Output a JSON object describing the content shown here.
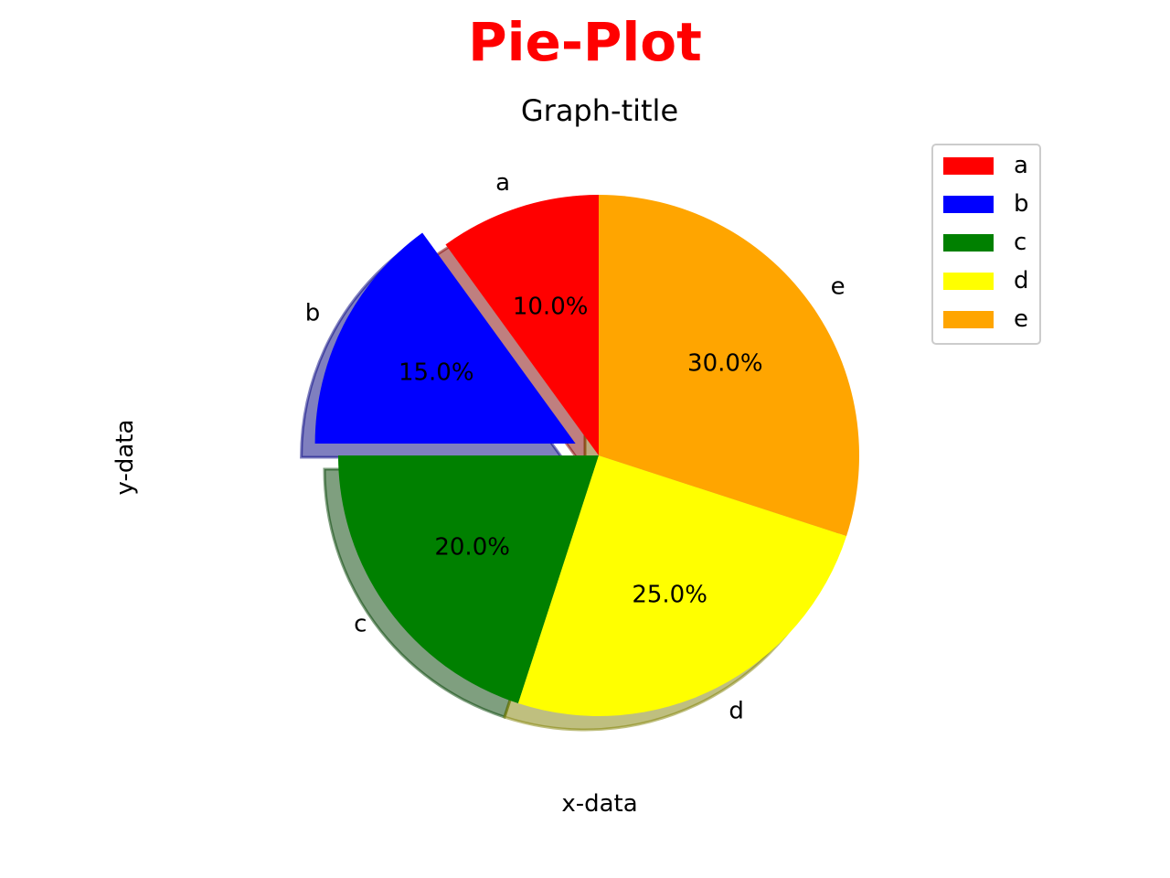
{
  "chart_data": {
    "type": "pie",
    "suptitle": "Pie-Plot",
    "suptitle_color": "#ff0000",
    "title": "Graph-title",
    "xlabel": "x-data",
    "ylabel": "y-data",
    "categories": [
      "a",
      "b",
      "c",
      "d",
      "e"
    ],
    "values": [
      10,
      15,
      20,
      25,
      30
    ],
    "percent_labels": [
      "10.0%",
      "15.0%",
      "20.0%",
      "25.0%",
      "30.0%"
    ],
    "colors": [
      "#ff0000",
      "#0000ff",
      "#008000",
      "#ffff00",
      "#ffa500"
    ],
    "explode": [
      0,
      0.1,
      0,
      0,
      0
    ],
    "shadow": true,
    "start_angle_deg": 90,
    "legend": {
      "entries": [
        "a",
        "b",
        "c",
        "d",
        "e"
      ],
      "placement": "top-right"
    }
  }
}
